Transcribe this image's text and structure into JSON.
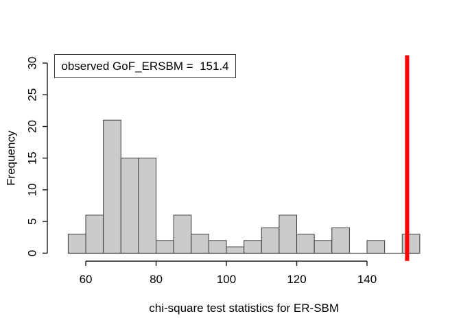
{
  "chart_data": {
    "type": "bar",
    "subtype": "histogram",
    "title": "",
    "xlabel": "chi-square test statistics for ER-SBM",
    "ylabel": "Frequency",
    "bin_edges": [
      55,
      60,
      65,
      70,
      75,
      80,
      85,
      90,
      95,
      100,
      105,
      110,
      115,
      120,
      125,
      130,
      135,
      140,
      145,
      150,
      155
    ],
    "counts": [
      3,
      6,
      21,
      15,
      15,
      2,
      6,
      3,
      2,
      1,
      2,
      4,
      6,
      3,
      2,
      4,
      0,
      2,
      0,
      3
    ],
    "x_ticks": [
      60,
      80,
      100,
      120,
      140
    ],
    "y_ticks": [
      0,
      5,
      10,
      15,
      20,
      25,
      30
    ],
    "xlim": [
      51,
      159
    ],
    "ylim": [
      -1.24,
      31.24
    ],
    "grid": false,
    "legend_position": "topleft",
    "legend": {
      "label": "observed GoF_ERSBM =  151.4"
    },
    "observed_line": {
      "value": 151.4,
      "stroke_width": 6
    },
    "colors": {
      "background": "#ffffff",
      "bar_fill": "#cbcbcb",
      "bar_border": "#3a3a3a",
      "axis": "#1a1a1a",
      "text": "#000000",
      "observed_line": "#ff0000",
      "legend_border": "#3c3c3c"
    }
  }
}
